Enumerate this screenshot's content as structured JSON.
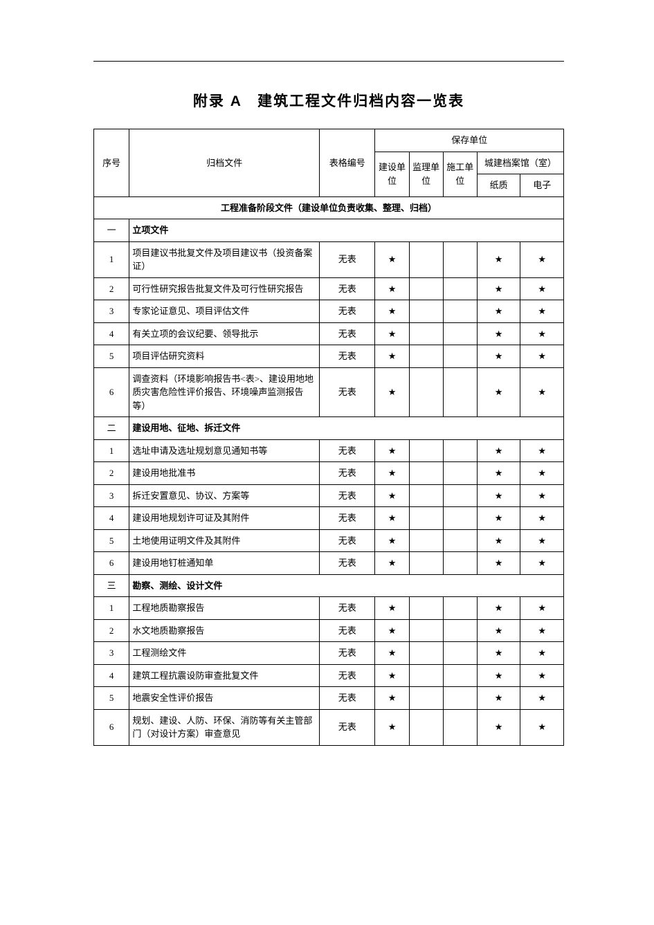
{
  "title": "附录 A　建筑工程文件归档内容一览表",
  "star": "★",
  "headers": {
    "seq": "序号",
    "file": "归档文件",
    "form": "表格编号",
    "storage_unit": "保存单位",
    "build_unit": "建设单位",
    "supervise_unit": "监理单位",
    "construct_unit": "施工单位",
    "archive_house": "城建档案馆（室）",
    "paper": "纸质",
    "electronic": "电子"
  },
  "group_label": "工程准备阶段文件（建设单位负责收集、整理、归档）",
  "form_none": "无表",
  "sections": [
    {
      "seq": "一",
      "title": "立项文件",
      "rows": [
        {
          "seq": "1",
          "file": "项目建议书批复文件及项目建议书（投资备案证）",
          "form": "无表",
          "c1": true,
          "c2": false,
          "c3": false,
          "c4": true,
          "c5": true
        },
        {
          "seq": "2",
          "file": "可行性研究报告批复文件及可行性研究报告",
          "form": "无表",
          "c1": true,
          "c2": false,
          "c3": false,
          "c4": true,
          "c5": true
        },
        {
          "seq": "3",
          "file": "专家论证意见、项目评估文件",
          "form": "无表",
          "c1": true,
          "c2": false,
          "c3": false,
          "c4": true,
          "c5": true
        },
        {
          "seq": "4",
          "file": "有关立项的会议纪要、领导批示",
          "form": "无表",
          "c1": true,
          "c2": false,
          "c3": false,
          "c4": true,
          "c5": true
        },
        {
          "seq": "5",
          "file": "项目评估研究资料",
          "form": "无表",
          "c1": true,
          "c2": false,
          "c3": false,
          "c4": true,
          "c5": true
        },
        {
          "seq": "6",
          "file": "调查资料（环境影响报告书<表>、建设用地地质灾害危险性评价报告、环境噪声监测报告等）",
          "form": "无表",
          "c1": true,
          "c2": false,
          "c3": false,
          "c4": true,
          "c5": true
        }
      ]
    },
    {
      "seq": "二",
      "title": "建设用地、征地、拆迁文件",
      "rows": [
        {
          "seq": "1",
          "file": "选址申请及选址规划意见通知书等",
          "form": "无表",
          "c1": true,
          "c2": false,
          "c3": false,
          "c4": true,
          "c5": true
        },
        {
          "seq": "2",
          "file": "建设用地批准书",
          "form": "无表",
          "c1": true,
          "c2": false,
          "c3": false,
          "c4": true,
          "c5": true
        },
        {
          "seq": "3",
          "file": "拆迁安置意见、协议、方案等",
          "form": "无表",
          "c1": true,
          "c2": false,
          "c3": false,
          "c4": true,
          "c5": true
        },
        {
          "seq": "4",
          "file": "建设用地规划许可证及其附件",
          "form": "无表",
          "c1": true,
          "c2": false,
          "c3": false,
          "c4": true,
          "c5": true
        },
        {
          "seq": "5",
          "file": "土地使用证明文件及其附件",
          "form": "无表",
          "c1": true,
          "c2": false,
          "c3": false,
          "c4": true,
          "c5": true
        },
        {
          "seq": "6",
          "file": "建设用地钉桩通知单",
          "form": "无表",
          "c1": true,
          "c2": false,
          "c3": false,
          "c4": true,
          "c5": true
        }
      ]
    },
    {
      "seq": "三",
      "title": "勘察、测绘、设计文件",
      "rows": [
        {
          "seq": "1",
          "file": "工程地质勘察报告",
          "form": "无表",
          "c1": true,
          "c2": false,
          "c3": false,
          "c4": true,
          "c5": true
        },
        {
          "seq": "2",
          "file": "水文地质勘察报告",
          "form": "无表",
          "c1": true,
          "c2": false,
          "c3": false,
          "c4": true,
          "c5": true
        },
        {
          "seq": "3",
          "file": "工程测绘文件",
          "form": "无表",
          "c1": true,
          "c2": false,
          "c3": false,
          "c4": true,
          "c5": true
        },
        {
          "seq": "4",
          "file": "建筑工程抗震设防审查批复文件",
          "form": "无表",
          "c1": true,
          "c2": false,
          "c3": false,
          "c4": true,
          "c5": true
        },
        {
          "seq": "5",
          "file": "地震安全性评价报告",
          "form": "无表",
          "c1": true,
          "c2": false,
          "c3": false,
          "c4": true,
          "c5": true
        },
        {
          "seq": "6",
          "file": "规划、建设、人防、环保、消防等有关主管部门（对设计方案）审查意见",
          "form": "无表",
          "c1": true,
          "c2": false,
          "c3": false,
          "c4": true,
          "c5": true
        }
      ]
    }
  ]
}
